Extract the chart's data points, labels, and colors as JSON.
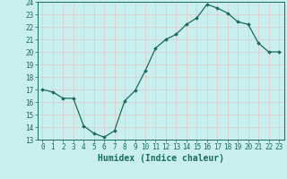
{
  "x": [
    0,
    1,
    2,
    3,
    4,
    5,
    6,
    7,
    8,
    9,
    10,
    11,
    12,
    13,
    14,
    15,
    16,
    17,
    18,
    19,
    20,
    21,
    22,
    23
  ],
  "y": [
    17.0,
    16.8,
    16.3,
    16.3,
    14.1,
    13.5,
    13.2,
    13.7,
    16.1,
    16.9,
    18.5,
    20.3,
    21.0,
    21.4,
    22.2,
    22.7,
    23.8,
    23.5,
    23.1,
    22.4,
    22.2,
    20.7,
    20.0,
    20.0
  ],
  "xlabel": "Humidex (Indice chaleur)",
  "xlim": [
    -0.5,
    23.5
  ],
  "ylim": [
    13,
    24
  ],
  "yticks": [
    13,
    14,
    15,
    16,
    17,
    18,
    19,
    20,
    21,
    22,
    23,
    24
  ],
  "xticks": [
    0,
    1,
    2,
    3,
    4,
    5,
    6,
    7,
    8,
    9,
    10,
    11,
    12,
    13,
    14,
    15,
    16,
    17,
    18,
    19,
    20,
    21,
    22,
    23
  ],
  "line_color": "#1a6b5a",
  "bg_color": "#c8eeee",
  "grid_color": "#e0c8c8",
  "marker": "D",
  "markersize": 1.8,
  "linewidth": 0.9,
  "xlabel_fontsize": 7,
  "tick_fontsize": 5.5
}
